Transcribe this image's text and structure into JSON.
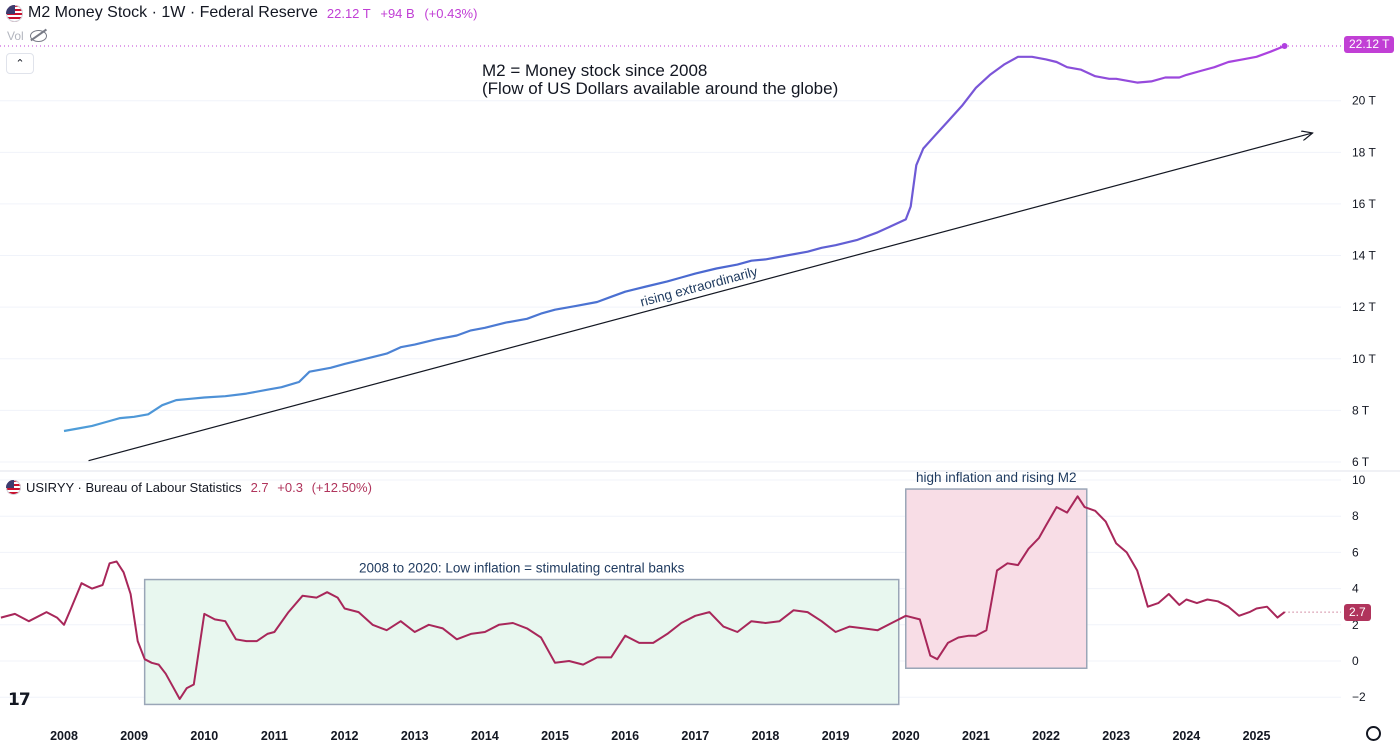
{
  "header": {
    "main_title": "M2 Money Stock · 1W · Federal Reserve",
    "main_last": "22.12 T",
    "main_change": "+94 B",
    "main_change_pct": "(+0.43%)",
    "vol_label": "Vol",
    "sub_title": "USIRYY · Bureau of Labour Statistics",
    "sub_last": "2.7",
    "sub_change": "+0.3",
    "sub_change_pct": "(+12.50%)"
  },
  "icons": {
    "flag": "us-flag-icon",
    "visibility": "eye-off-icon",
    "collapse": "chevron-up-icon",
    "settings": "gear-icon",
    "logo": "tradingview-logo"
  },
  "logo_text": "17",
  "collapse_glyph": "⌃",
  "colors": {
    "m2_start": "#4fa3d9",
    "m2_mid": "#4a68d0",
    "m2_end": "#b040e0",
    "cpi_line": "#a8275a",
    "low_box_fill": "#e8f7ef",
    "low_box_border": "#9aa6b7",
    "high_box_fill": "#f8dde6",
    "high_box_border": "#9aa6b7",
    "m2_tag": "#c13fd5",
    "cpi_tag": "#b0345c"
  },
  "chart_data": [
    {
      "type": "line",
      "title": "M2 Money Stock · 1W · Federal Reserve",
      "ylabel": "",
      "ylim": [
        5.9,
        23.0
      ],
      "y_ticks": [
        6,
        8,
        10,
        12,
        14,
        16,
        18,
        20
      ],
      "y_tick_labels": [
        "6 T",
        "8 T",
        "10 T",
        "12 T",
        "14 T",
        "16 T",
        "18 T",
        "20 T"
      ],
      "last_value_label": "22.12 T",
      "series": [
        {
          "name": "M2",
          "x": [
            2008.0,
            2008.2,
            2008.4,
            2008.6,
            2008.8,
            2009.0,
            2009.2,
            2009.4,
            2009.6,
            2009.8,
            2010.0,
            2010.3,
            2010.6,
            2010.9,
            2011.1,
            2011.35,
            2011.5,
            2011.8,
            2012.0,
            2012.3,
            2012.6,
            2012.8,
            2013.0,
            2013.3,
            2013.6,
            2013.8,
            2014.0,
            2014.3,
            2014.6,
            2014.8,
            2015.0,
            2015.3,
            2015.6,
            2015.8,
            2016.0,
            2016.3,
            2016.6,
            2016.8,
            2017.0,
            2017.3,
            2017.6,
            2017.8,
            2018.0,
            2018.3,
            2018.6,
            2018.8,
            2019.0,
            2019.3,
            2019.6,
            2019.8,
            2020.0,
            2020.07,
            2020.15,
            2020.25,
            2020.4,
            2020.6,
            2020.8,
            2021.0,
            2021.2,
            2021.4,
            2021.6,
            2021.8,
            2022.0,
            2022.15,
            2022.3,
            2022.5,
            2022.7,
            2022.9,
            2023.0,
            2023.1,
            2023.3,
            2023.5,
            2023.7,
            2023.9,
            2024.0,
            2024.2,
            2024.4,
            2024.6,
            2024.8,
            2025.0,
            2025.2,
            2025.4
          ],
          "values": [
            7.2,
            7.3,
            7.4,
            7.55,
            7.7,
            7.75,
            7.85,
            8.2,
            8.4,
            8.45,
            8.5,
            8.55,
            8.65,
            8.8,
            8.9,
            9.1,
            9.5,
            9.65,
            9.8,
            10.0,
            10.2,
            10.45,
            10.55,
            10.75,
            10.9,
            11.1,
            11.2,
            11.4,
            11.55,
            11.75,
            11.9,
            12.05,
            12.2,
            12.4,
            12.6,
            12.8,
            13.0,
            13.15,
            13.3,
            13.5,
            13.65,
            13.8,
            13.85,
            14.0,
            14.15,
            14.3,
            14.4,
            14.6,
            14.9,
            15.15,
            15.4,
            15.9,
            17.5,
            18.15,
            18.6,
            19.2,
            19.8,
            20.5,
            21.0,
            21.4,
            21.7,
            21.7,
            21.6,
            21.5,
            21.3,
            21.2,
            20.95,
            20.85,
            20.85,
            20.8,
            20.7,
            20.75,
            20.9,
            20.9,
            21.0,
            21.15,
            21.3,
            21.5,
            21.6,
            21.7,
            21.9,
            22.12
          ]
        }
      ],
      "annotations": [
        {
          "type": "text",
          "text": "M2 = Money stock since 2008"
        },
        {
          "type": "text",
          "text": "(Flow of US Dollars available around the globe)"
        },
        {
          "type": "trend_arrow",
          "text": "rising extraordinarily",
          "from": [
            2008.35,
            6.05
          ],
          "to": [
            2025.8,
            18.75
          ]
        }
      ]
    },
    {
      "type": "line",
      "title": "USIRYY · Bureau of Labour Statistics",
      "ylabel": "",
      "ylim": [
        -2.5,
        10.2
      ],
      "y_ticks": [
        -2,
        0,
        2,
        4,
        6,
        8,
        10
      ],
      "y_tick_labels": [
        "−2",
        "0",
        "2",
        "4",
        "6",
        "8",
        "10"
      ],
      "last_value_label": "2.7",
      "x_ticks": [
        2008,
        2009,
        2010,
        2011,
        2012,
        2013,
        2014,
        2015,
        2016,
        2017,
        2018,
        2019,
        2020,
        2021,
        2022,
        2023,
        2024,
        2025
      ],
      "x_tick_labels": [
        "2008",
        "2009",
        "2010",
        "2011",
        "2012",
        "2013",
        "2014",
        "2015",
        "2016",
        "2017",
        "2018",
        "2019",
        "2020",
        "2021",
        "2022",
        "2023",
        "2024",
        "2025"
      ],
      "series": [
        {
          "name": "USIRYY",
          "x": [
            2007.1,
            2007.3,
            2007.5,
            2007.75,
            2007.9,
            2008.0,
            2008.1,
            2008.25,
            2008.4,
            2008.55,
            2008.65,
            2008.75,
            2008.85,
            2008.95,
            2009.05,
            2009.15,
            2009.25,
            2009.35,
            2009.45,
            2009.55,
            2009.65,
            2009.75,
            2009.85,
            2010.0,
            2010.15,
            2010.3,
            2010.45,
            2010.6,
            2010.75,
            2010.9,
            2011.0,
            2011.2,
            2011.4,
            2011.6,
            2011.75,
            2011.9,
            2012.0,
            2012.2,
            2012.4,
            2012.6,
            2012.8,
            2013.0,
            2013.2,
            2013.4,
            2013.6,
            2013.8,
            2014.0,
            2014.2,
            2014.4,
            2014.6,
            2014.8,
            2015.0,
            2015.2,
            2015.4,
            2015.6,
            2015.8,
            2016.0,
            2016.2,
            2016.4,
            2016.6,
            2016.8,
            2017.0,
            2017.2,
            2017.4,
            2017.6,
            2017.8,
            2018.0,
            2018.2,
            2018.4,
            2018.6,
            2018.8,
            2019.0,
            2019.2,
            2019.4,
            2019.6,
            2019.8,
            2020.0,
            2020.2,
            2020.35,
            2020.45,
            2020.6,
            2020.75,
            2020.9,
            2021.0,
            2021.15,
            2021.3,
            2021.45,
            2021.6,
            2021.75,
            2021.9,
            2022.0,
            2022.15,
            2022.3,
            2022.45,
            2022.55,
            2022.7,
            2022.85,
            2023.0,
            2023.15,
            2023.3,
            2023.45,
            2023.6,
            2023.75,
            2023.9,
            2024.0,
            2024.15,
            2024.3,
            2024.45,
            2024.6,
            2024.75,
            2024.9,
            2025.0,
            2025.15,
            2025.3,
            2025.4
          ],
          "values": [
            2.4,
            2.6,
            2.2,
            2.7,
            2.4,
            2.0,
            2.9,
            4.3,
            4.0,
            4.2,
            5.4,
            5.5,
            4.9,
            3.7,
            1.1,
            0.1,
            -0.1,
            -0.2,
            -0.7,
            -1.4,
            -2.1,
            -1.5,
            -1.3,
            2.6,
            2.3,
            2.2,
            1.2,
            1.1,
            1.1,
            1.5,
            1.6,
            2.7,
            3.6,
            3.5,
            3.8,
            3.5,
            2.9,
            2.7,
            2.0,
            1.7,
            2.2,
            1.6,
            2.0,
            1.8,
            1.2,
            1.5,
            1.6,
            2.0,
            2.1,
            1.8,
            1.3,
            -0.1,
            0.0,
            -0.2,
            0.2,
            0.2,
            1.4,
            1.0,
            1.0,
            1.5,
            2.1,
            2.5,
            2.7,
            1.9,
            1.6,
            2.2,
            2.1,
            2.2,
            2.8,
            2.7,
            2.2,
            1.6,
            1.9,
            1.8,
            1.7,
            2.1,
            2.5,
            2.3,
            0.3,
            0.1,
            1.0,
            1.3,
            1.4,
            1.4,
            1.7,
            5.0,
            5.4,
            5.3,
            6.2,
            6.8,
            7.5,
            8.5,
            8.2,
            9.1,
            8.5,
            8.3,
            7.7,
            6.5,
            6.0,
            5.0,
            3.0,
            3.2,
            3.7,
            3.1,
            3.4,
            3.2,
            3.4,
            3.3,
            3.0,
            2.5,
            2.7,
            2.9,
            3.0,
            2.4,
            2.7
          ]
        }
      ],
      "annotations": [
        {
          "type": "box",
          "text": "2008 to 2020: Low inflation = stimulating central banks",
          "x_range": [
            2009.15,
            2019.9
          ],
          "y_range": [
            -2.4,
            4.5
          ]
        },
        {
          "type": "box",
          "text": "high inflation and rising M2",
          "x_range": [
            2020.0,
            2022.58
          ],
          "y_range": [
            -0.4,
            9.5
          ]
        }
      ]
    }
  ]
}
